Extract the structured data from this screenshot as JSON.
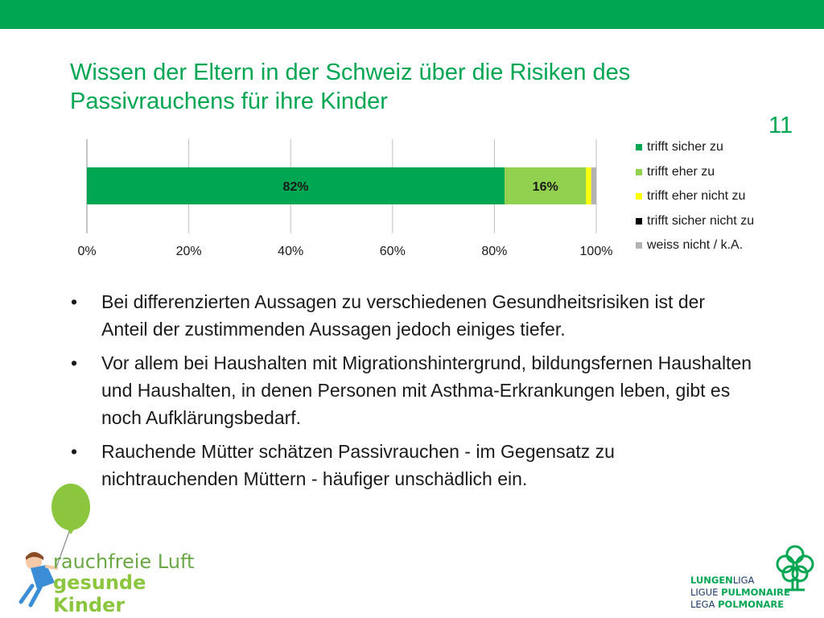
{
  "page": {
    "title": "Wissen der Eltern in der Schweiz über die Risiken des Passivrauchens für ihre Kinder",
    "page_number": "11"
  },
  "chart_data": {
    "type": "bar",
    "orientation": "horizontal",
    "stacked": true,
    "x_ticks": [
      "0%",
      "20%",
      "40%",
      "60%",
      "80%",
      "100%"
    ],
    "xlim": [
      0,
      100
    ],
    "grid": true,
    "legend_position": "right",
    "series": [
      {
        "name": "trifft sicher zu",
        "values": [
          82
        ],
        "label": "82%",
        "color": "#00a651"
      },
      {
        "name": "trifft eher zu",
        "values": [
          16
        ],
        "label": "16%",
        "color": "#92d050"
      },
      {
        "name": "trifft eher nicht zu",
        "values": [
          1
        ],
        "label": "",
        "color": "#ffff00"
      },
      {
        "name": "trifft sicher nicht zu",
        "values": [
          0
        ],
        "label": "",
        "color": "#000000"
      },
      {
        "name": "weiss nicht / k.A.",
        "values": [
          1
        ],
        "label": "",
        "color": "#b3b3b3"
      }
    ]
  },
  "bullets": [
    "Bei differenzierten Aussagen zu verschiedenen Gesundheitsrisiken ist der Anteil der zustimmenden Aussagen jedoch einiges tiefer.",
    "Vor allem bei Haushalten mit Migrationshintergrund, bildungsfernen Haushalten und Haushalten, in denen Personen mit Asthma-Erkrankungen leben, gibt es noch Aufklärungsbedarf.",
    "Rauchende Mütter schätzen Passivrauchen - im Gegensatz zu nichtrauchenden Müttern - häufiger unschädlich ein."
  ],
  "logo_left": {
    "line1": "rauchfreie Luft",
    "line2": "gesunde Kinder"
  },
  "logo_right": {
    "line1_a": "LUNGEN",
    "line1_b": "LIGA",
    "line2_a": "LIGUE ",
    "line2_b": "PULMONAIRE",
    "line3_a": "LEGA ",
    "line3_b": "POLMONARE"
  }
}
